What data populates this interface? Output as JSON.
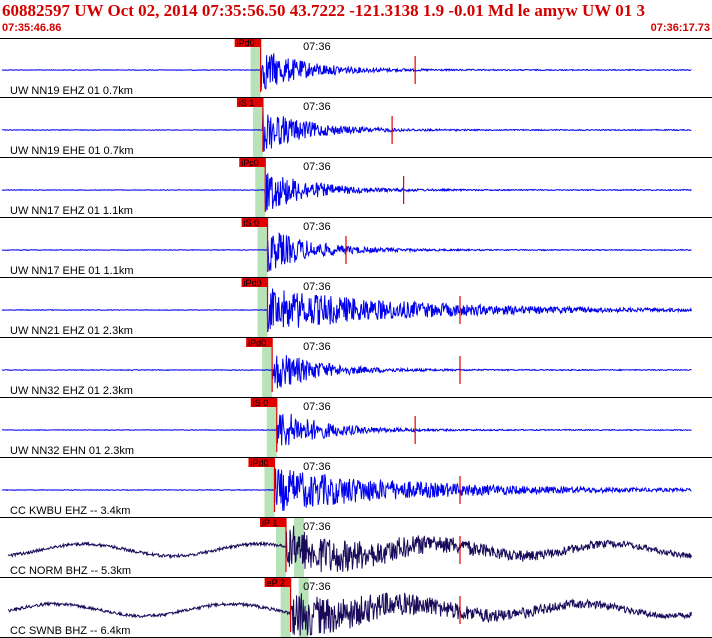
{
  "header": {
    "title": "60882597 UW Oct 02, 2014 07:35:56.50   43.7222  -121.3138  1.9  -0.01 Md le amyw UW 01   3",
    "start_time": "07:35:46.86",
    "end_time": "07:36:17.73"
  },
  "colors": {
    "text_red": "#d40000",
    "pick_box": "#e00000",
    "trace_blue": "#0000ee",
    "trace_dark": "#1a0a5a",
    "highlight_green": "#b8e2b8",
    "pick_line": "#e00000"
  },
  "chart_data": {
    "type": "line",
    "title": "60882597 UW Oct 02, 2014 07:35:56.50",
    "x_start": "07:35:46.86",
    "x_end": "07:36:17.73",
    "time_mark_label": "07:36",
    "traces": [
      {
        "station": "UW NN19 EHZ 01 0.7km",
        "pick": "iPd0",
        "color": "blue",
        "onset_s": 11.3,
        "coda_s": 18.0
      },
      {
        "station": "UW NN19 EHE 01 0.7km",
        "pick": "iS 1",
        "color": "blue",
        "onset_s": 11.4,
        "coda_s": 17.0
      },
      {
        "station": "UW NN17 EHZ 01 1.1km",
        "pick": "iPc0",
        "color": "blue",
        "onset_s": 11.5,
        "coda_s": 17.5
      },
      {
        "station": "UW NN17 EHE 01 1.1km",
        "pick": "iS 0",
        "color": "blue",
        "onset_s": 11.6,
        "coda_s": 15.0
      },
      {
        "station": "UW NN21 EHZ 01 2.3km",
        "pick": "iPd0",
        "color": "blue",
        "onset_s": 11.6,
        "coda_s": 33.0
      },
      {
        "station": "UW NN32 EHZ 01 2.3km",
        "pick": "iPd0",
        "color": "blue",
        "onset_s": 11.8,
        "coda_s": 20.0
      },
      {
        "station": "UW NN32 EHN 01 2.3km",
        "pick": "iS 0",
        "color": "blue",
        "onset_s": 12.0,
        "coda_s": 18.0
      },
      {
        "station": "CC KWBU EHZ -- 3.4km",
        "pick": "iPd0",
        "color": "blue",
        "onset_s": 11.9,
        "coda_s": 33.0
      },
      {
        "station": "CC NORM BHZ -- 5.3km",
        "pick": "iP 1",
        "color": "dark",
        "onset_s": 12.4,
        "coda_s": 33.0
      },
      {
        "station": "CC SWNB BHZ -- 6.4km",
        "pick": "eP 2",
        "color": "dark",
        "onset_s": 12.6,
        "coda_s": 33.0
      }
    ]
  }
}
